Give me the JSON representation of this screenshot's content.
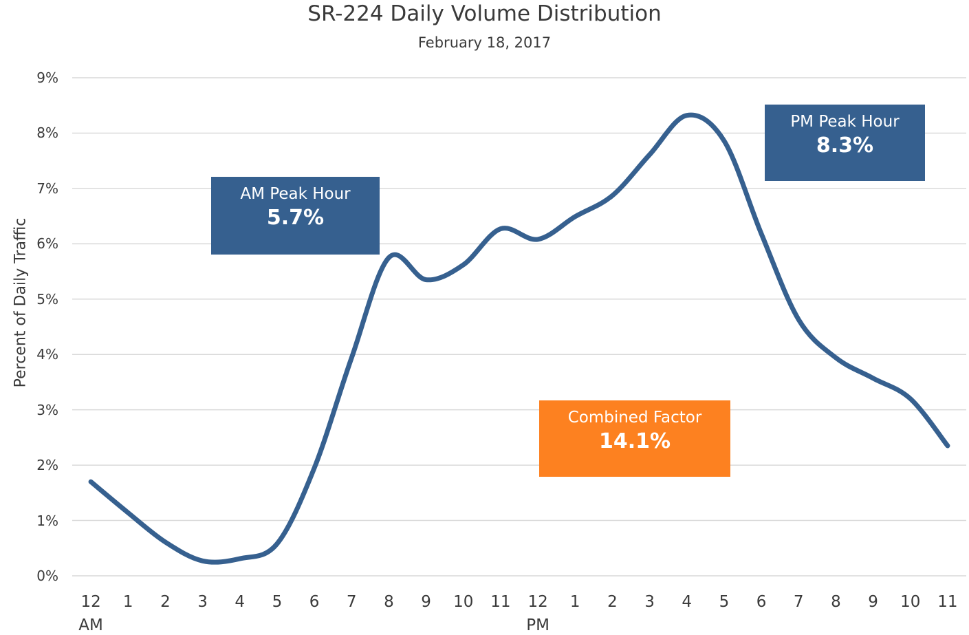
{
  "chart_data": {
    "type": "line",
    "title": "SR-224 Daily Volume Distribution",
    "subtitle": "February 18, 2017",
    "y_label": "Percent of Daily Traffic",
    "categories": [
      "12 AM",
      "1",
      "2",
      "3",
      "4",
      "5",
      "6",
      "7",
      "8",
      "9",
      "10",
      "11",
      "12 PM",
      "1",
      "2",
      "3",
      "4",
      "5",
      "6",
      "7",
      "8",
      "9",
      "10",
      "11"
    ],
    "series": [
      {
        "name": "Daily Volume",
        "color": "#36608f",
        "values": [
          1.7,
          1.14,
          0.61,
          0.27,
          0.31,
          0.58,
          1.95,
          3.94,
          5.75,
          5.35,
          5.62,
          6.27,
          6.08,
          6.49,
          6.87,
          7.61,
          8.32,
          7.86,
          6.18,
          4.63,
          3.94,
          3.57,
          3.2,
          2.35
        ]
      }
    ],
    "ylim": [
      0,
      9
    ],
    "yticks": [
      {
        "value": 0,
        "label": "0%"
      },
      {
        "value": 1,
        "label": "1%"
      },
      {
        "value": 2,
        "label": "2%"
      },
      {
        "value": 3,
        "label": "3%"
      },
      {
        "value": 4,
        "label": "4%"
      },
      {
        "value": 5,
        "label": "5%"
      },
      {
        "value": 6,
        "label": "6%"
      },
      {
        "value": 7,
        "label": "7%"
      },
      {
        "value": 8,
        "label": "8%"
      },
      {
        "value": 9,
        "label": "9%"
      }
    ],
    "grid": true,
    "annotations": [
      {
        "title": "AM Peak Hour",
        "value": "5.7%",
        "color": "#36608f"
      },
      {
        "title": "PM Peak Hour",
        "value": "8.3%",
        "color": "#36608f"
      },
      {
        "title": "Combined Factor",
        "value": "14.1%",
        "color": "#fd8120"
      }
    ]
  }
}
